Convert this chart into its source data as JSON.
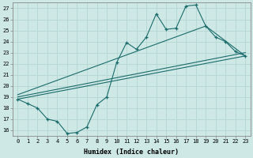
{
  "xlabel": "Humidex (Indice chaleur)",
  "bg_color": "#cde8e5",
  "line_color": "#1a6b6b",
  "grid_color": "#b8d8d5",
  "xlim": [
    -0.5,
    23.5
  ],
  "ylim": [
    15.5,
    27.5
  ],
  "xticks": [
    0,
    1,
    2,
    3,
    4,
    5,
    6,
    7,
    8,
    9,
    10,
    11,
    12,
    13,
    14,
    15,
    16,
    17,
    18,
    19,
    20,
    21,
    22,
    23
  ],
  "yticks": [
    16,
    17,
    18,
    19,
    20,
    21,
    22,
    23,
    24,
    25,
    26,
    27
  ],
  "jagged_x": [
    0,
    1,
    2,
    3,
    4,
    5,
    6,
    7,
    8,
    9,
    10,
    11,
    12,
    13,
    14,
    15,
    16,
    17,
    18,
    19,
    20,
    21,
    22,
    23
  ],
  "jagged_y": [
    18.8,
    18.4,
    18.0,
    17.0,
    16.8,
    15.7,
    15.8,
    16.3,
    18.3,
    19.0,
    22.1,
    23.9,
    23.3,
    24.4,
    26.5,
    25.1,
    25.2,
    27.2,
    27.3,
    25.4,
    24.4,
    24.0,
    23.1,
    22.7
  ],
  "line1_x": [
    0,
    23
  ],
  "line1_y": [
    18.8,
    22.7
  ],
  "line2_x": [
    0,
    23
  ],
  "line2_y": [
    19.0,
    23.0
  ],
  "line3_x": [
    0,
    19,
    23
  ],
  "line3_y": [
    19.2,
    25.4,
    22.7
  ]
}
